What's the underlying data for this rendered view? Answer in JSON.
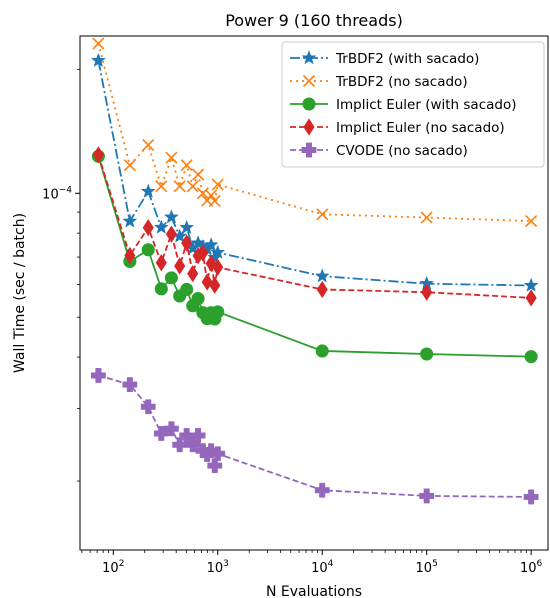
{
  "chart_data": {
    "type": "line",
    "title": "Power 9 (160 threads)",
    "xlabel": "N Evaluations",
    "ylabel": "Wall Time (sec / batch)",
    "xscale": "log",
    "yscale": "log",
    "xlim": [
      48,
      1450000
    ],
    "ylim": [
      1.36e-05,
      0.000241
    ],
    "x_ticks": [
      {
        "value": 100,
        "base": "10",
        "exp": "2"
      },
      {
        "value": 1000,
        "base": "10",
        "exp": "3"
      },
      {
        "value": 10000,
        "base": "10",
        "exp": "4"
      },
      {
        "value": 100000,
        "base": "10",
        "exp": "5"
      },
      {
        "value": 1000000,
        "base": "10",
        "exp": "6"
      }
    ],
    "y_ticks": [
      {
        "value": 0.0001,
        "base": "10",
        "exp": "−4"
      }
    ],
    "legend_position": "top-right",
    "x": [
      72,
      144,
      216,
      288,
      360,
      432,
      504,
      576,
      648,
      720,
      792,
      864,
      936,
      1000,
      10000,
      100000,
      1000000
    ],
    "series": [
      {
        "name": "TrBDF2 (with sacado)",
        "color": "#1f77b4",
        "dash": "10,3,2,3",
        "marker": "star",
        "values": [
          0.00021,
          8.55e-05,
          0.000101,
          8.26e-05,
          8.75e-05,
          7.86e-05,
          8.25e-05,
          7.35e-05,
          7.57e-05,
          7.42e-05,
          7.31e-05,
          7.49e-05,
          6.98e-05,
          7.18e-05,
          6.29e-05,
          6.03e-05,
          5.97e-05
        ]
      },
      {
        "name": "TrBDF2 (no sacado)",
        "color": "#ff7f0e",
        "dash": "2,4",
        "marker": "x",
        "values": [
          0.000231,
          0.000117,
          0.000131,
          0.000104,
          0.000122,
          0.000104,
          0.000117,
          0.000104,
          0.000111,
          0.0001,
          9.6e-05,
          9.88e-05,
          9.58e-05,
          0.000105,
          8.89e-05,
          8.73e-05,
          8.56e-05
        ]
      },
      {
        "name": "Implict Euler (with sacado)",
        "color": "#2ca02c",
        "dash": "",
        "marker": "circle",
        "values": [
          0.000123,
          6.83e-05,
          7.29e-05,
          5.86e-05,
          6.23e-05,
          5.63e-05,
          5.84e-05,
          5.33e-05,
          5.55e-05,
          5.13e-05,
          4.96e-05,
          5.13e-05,
          4.95e-05,
          5.15e-05,
          4.14e-05,
          4.07e-05,
          4.01e-05
        ]
      },
      {
        "name": "Implict Euler (no sacado)",
        "color": "#d62728",
        "dash": "6,3",
        "marker": "diamond",
        "values": [
          0.000124,
          7.06e-05,
          8.25e-05,
          6.78e-05,
          7.96e-05,
          6.66e-05,
          7.57e-05,
          6.38e-05,
          7.05e-05,
          7.16e-05,
          6.09e-05,
          6.75e-05,
          5.98e-05,
          6.61e-05,
          5.84e-05,
          5.75e-05,
          5.57e-05
        ]
      },
      {
        "name": "CVODE (no sacado)",
        "color": "#9467bd",
        "dash": "6,3",
        "marker": "plus",
        "values": [
          3.61e-05,
          3.43e-05,
          3.03e-05,
          2.61e-05,
          2.68e-05,
          2.45e-05,
          2.58e-05,
          2.45e-05,
          2.58e-05,
          2.37e-05,
          2.32e-05,
          2.37e-05,
          2.18e-05,
          2.33e-05,
          1.9e-05,
          1.84e-05,
          1.83e-05
        ]
      }
    ]
  }
}
